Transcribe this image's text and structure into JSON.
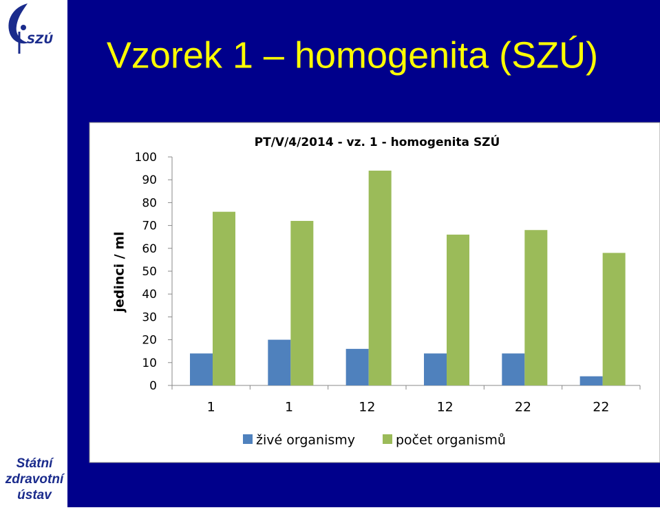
{
  "slide_title": "Vzorek 1 – homogenita (SZÚ)",
  "logo_text": "SZÚ",
  "footer": [
    "Státní",
    "zdravotní",
    "ústav"
  ],
  "chart_data": {
    "type": "bar",
    "title": "PT/V/4/2014 - vz. 1 - homogenita  SZÚ",
    "y_label": "jedinci / ml",
    "categories": [
      "1",
      "1",
      "12",
      "12",
      "22",
      "22"
    ],
    "series": [
      {
        "name": "živé organismy",
        "color": "#4f81bd",
        "values": [
          14,
          20,
          16,
          14,
          14,
          4
        ]
      },
      {
        "name": "počet organismů",
        "color": "#9bbb59",
        "values": [
          76,
          72,
          94,
          66,
          68,
          58
        ]
      }
    ],
    "ylim": [
      0,
      100
    ],
    "yticks": [
      0,
      10,
      20,
      30,
      40,
      50,
      60,
      70,
      80,
      90,
      100
    ]
  }
}
